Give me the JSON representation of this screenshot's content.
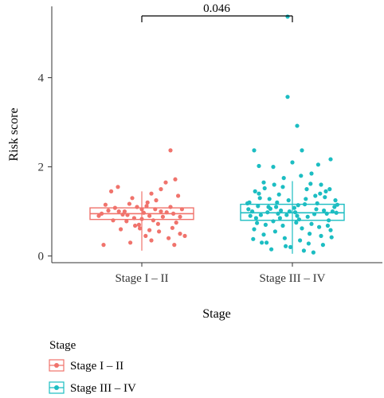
{
  "chart_data": {
    "type": "boxplot",
    "xlabel": "Stage",
    "ylabel": "Risk score",
    "ylim": [
      -0.15,
      5.6
    ],
    "yticks": [
      0,
      2,
      4
    ],
    "legend": {
      "title": "Stage",
      "placement": "bottom",
      "entries": [
        "Stage I – II",
        "Stage III – IV"
      ]
    },
    "significance": {
      "label": "0.046",
      "between": [
        "Stage I – II",
        "Stage III – IV"
      ]
    },
    "groups": [
      {
        "name": "Stage I – II",
        "color": "#F0736C",
        "box": {
          "q1": 0.82,
          "median": 0.95,
          "q3": 1.08,
          "whisker_low": 0.12,
          "whisker_high": 1.45
        },
        "points": [
          {
            "x": -0.42,
            "y": 0.95
          },
          {
            "x": -0.35,
            "y": 1.02
          },
          {
            "x": -0.3,
            "y": 0.8
          },
          {
            "x": -0.25,
            "y": 1.55
          },
          {
            "x": -0.22,
            "y": 0.6
          },
          {
            "x": -0.18,
            "y": 1.0
          },
          {
            "x": -0.15,
            "y": 0.92
          },
          {
            "x": -0.12,
            "y": 0.3
          },
          {
            "x": -0.1,
            "y": 1.3
          },
          {
            "x": -0.08,
            "y": 0.85
          },
          {
            "x": -0.05,
            "y": 1.1
          },
          {
            "x": -0.03,
            "y": 0.7
          },
          {
            "x": 0.0,
            "y": 1.05
          },
          {
            "x": 0.02,
            "y": 0.97
          },
          {
            "x": 0.04,
            "y": 0.45
          },
          {
            "x": 0.06,
            "y": 1.2
          },
          {
            "x": 0.08,
            "y": 0.9
          },
          {
            "x": 0.1,
            "y": 1.4
          },
          {
            "x": 0.12,
            "y": 0.8
          },
          {
            "x": 0.15,
            "y": 1.25
          },
          {
            "x": 0.18,
            "y": 0.55
          },
          {
            "x": 0.2,
            "y": 1.0
          },
          {
            "x": 0.22,
            "y": 0.88
          },
          {
            "x": 0.25,
            "y": 1.65
          },
          {
            "x": 0.28,
            "y": 0.4
          },
          {
            "x": 0.3,
            "y": 1.1
          },
          {
            "x": 0.33,
            "y": 0.95
          },
          {
            "x": 0.36,
            "y": 0.75
          },
          {
            "x": 0.38,
            "y": 1.35
          },
          {
            "x": 0.4,
            "y": 0.5
          },
          {
            "x": 0.42,
            "y": 1.05
          },
          {
            "x": 0.45,
            "y": 0.45
          },
          {
            "x": 0.3,
            "y": 2.37
          },
          {
            "x": -0.38,
            "y": 1.15
          },
          {
            "x": -0.28,
            "y": 1.08
          },
          {
            "x": -0.2,
            "y": 0.93
          },
          {
            "x": -0.13,
            "y": 1.17
          },
          {
            "x": 0.0,
            "y": 0.83
          },
          {
            "x": 0.14,
            "y": 1.05
          },
          {
            "x": 0.26,
            "y": 0.98
          },
          {
            "x": -0.4,
            "y": 0.25
          },
          {
            "x": 0.34,
            "y": 0.25
          },
          {
            "x": -0.02,
            "y": 0.62
          },
          {
            "x": 0.1,
            "y": 0.35
          },
          {
            "x": -0.32,
            "y": 1.45
          },
          {
            "x": 0.2,
            "y": 1.5
          },
          {
            "x": 0.35,
            "y": 1.72
          },
          {
            "x": -0.16,
            "y": 0.78
          },
          {
            "x": 0.05,
            "y": 1.12
          },
          {
            "x": 0.4,
            "y": 0.88
          },
          {
            "x": -0.07,
            "y": 0.68
          },
          {
            "x": 0.17,
            "y": 0.72
          },
          {
            "x": -0.24,
            "y": 1.0
          },
          {
            "x": 0.08,
            "y": 0.58
          },
          {
            "x": 0.32,
            "y": 0.63
          },
          {
            "x": -0.45,
            "y": 0.9
          }
        ]
      },
      {
        "name": "Stage III – IV",
        "color": "#1CBDC2",
        "box": {
          "q1": 0.8,
          "median": 0.97,
          "q3": 1.16,
          "whisker_low": 0.05,
          "whisker_high": 1.68
        },
        "points": [
          {
            "x": -0.05,
            "y": 5.37
          },
          {
            "x": -0.05,
            "y": 3.57
          },
          {
            "x": 0.05,
            "y": 2.92
          },
          {
            "x": -0.4,
            "y": 2.37
          },
          {
            "x": 0.1,
            "y": 2.37
          },
          {
            "x": 0.4,
            "y": 2.17
          },
          {
            "x": 0.0,
            "y": 2.1
          },
          {
            "x": -0.2,
            "y": 2.0
          },
          {
            "x": 0.2,
            "y": 1.85
          },
          {
            "x": -0.3,
            "y": 1.65
          },
          {
            "x": 0.3,
            "y": 1.6
          },
          {
            "x": -0.1,
            "y": 1.55
          },
          {
            "x": 0.15,
            "y": 1.5
          },
          {
            "x": 0.35,
            "y": 1.45
          },
          {
            "x": -0.35,
            "y": 1.4
          },
          {
            "x": -0.45,
            "y": 1.2
          },
          {
            "x": 0.45,
            "y": 1.25
          },
          {
            "x": -0.25,
            "y": 1.1
          },
          {
            "x": 0.25,
            "y": 1.05
          },
          {
            "x": -0.15,
            "y": 0.95
          },
          {
            "x": 0.05,
            "y": 0.9
          },
          {
            "x": -0.38,
            "y": 0.85
          },
          {
            "x": 0.38,
            "y": 0.8
          },
          {
            "x": -0.28,
            "y": 0.7
          },
          {
            "x": 0.28,
            "y": 0.65
          },
          {
            "x": -0.18,
            "y": 0.55
          },
          {
            "x": 0.18,
            "y": 0.5
          },
          {
            "x": -0.08,
            "y": 0.4
          },
          {
            "x": 0.08,
            "y": 0.35
          },
          {
            "x": -0.32,
            "y": 0.3
          },
          {
            "x": 0.32,
            "y": 0.25
          },
          {
            "x": -0.02,
            "y": 0.2
          },
          {
            "x": 0.12,
            "y": 0.12
          },
          {
            "x": -0.22,
            "y": 0.15
          },
          {
            "x": 0.22,
            "y": 0.08
          },
          {
            "x": -0.42,
            "y": 1.0
          },
          {
            "x": 0.42,
            "y": 1.0
          },
          {
            "x": -0.12,
            "y": 1.02
          },
          {
            "x": 0.02,
            "y": 1.08
          },
          {
            "x": -0.36,
            "y": 1.12
          },
          {
            "x": 0.36,
            "y": 0.95
          },
          {
            "x": -0.26,
            "y": 0.98
          },
          {
            "x": 0.26,
            "y": 1.18
          },
          {
            "x": -0.16,
            "y": 1.2
          },
          {
            "x": 0.16,
            "y": 0.88
          },
          {
            "x": -0.06,
            "y": 0.92
          },
          {
            "x": 0.06,
            "y": 1.14
          },
          {
            "x": -0.44,
            "y": 0.9
          },
          {
            "x": 0.44,
            "y": 1.1
          },
          {
            "x": -0.34,
            "y": 1.3
          },
          {
            "x": 0.34,
            "y": 1.32
          },
          {
            "x": -0.24,
            "y": 1.28
          },
          {
            "x": 0.24,
            "y": 1.35
          },
          {
            "x": -0.14,
            "y": 1.38
          },
          {
            "x": 0.14,
            "y": 1.28
          },
          {
            "x": -0.04,
            "y": 1.25
          },
          {
            "x": 0.04,
            "y": 0.75
          },
          {
            "x": -0.4,
            "y": 0.6
          },
          {
            "x": 0.4,
            "y": 0.58
          },
          {
            "x": -0.3,
            "y": 0.48
          },
          {
            "x": 0.3,
            "y": 0.45
          },
          {
            "x": -0.2,
            "y": 0.78
          },
          {
            "x": 0.2,
            "y": 0.72
          },
          {
            "x": -0.1,
            "y": 0.68
          },
          {
            "x": 0.1,
            "y": 0.62
          },
          {
            "x": -0.46,
            "y": 1.05
          },
          {
            "x": 0.46,
            "y": 0.97
          },
          {
            "x": -0.33,
            "y": 0.92
          },
          {
            "x": 0.33,
            "y": 1.02
          },
          {
            "x": -0.23,
            "y": 1.06
          },
          {
            "x": 0.23,
            "y": 0.94
          },
          {
            "x": -0.13,
            "y": 0.85
          },
          {
            "x": 0.13,
            "y": 1.16
          },
          {
            "x": -0.03,
            "y": 1.0
          },
          {
            "x": 0.03,
            "y": 0.98
          },
          {
            "x": -0.39,
            "y": 1.45
          },
          {
            "x": 0.39,
            "y": 1.5
          },
          {
            "x": -0.29,
            "y": 1.52
          },
          {
            "x": 0.29,
            "y": 1.4
          },
          {
            "x": -0.19,
            "y": 1.6
          },
          {
            "x": 0.19,
            "y": 1.62
          },
          {
            "x": -0.09,
            "y": 1.75
          },
          {
            "x": 0.09,
            "y": 1.8
          },
          {
            "x": -0.35,
            "y": 2.02
          },
          {
            "x": 0.27,
            "y": 2.05
          },
          {
            "x": -0.41,
            "y": 0.38
          },
          {
            "x": 0.41,
            "y": 0.42
          },
          {
            "x": -0.27,
            "y": 0.3
          },
          {
            "x": 0.17,
            "y": 0.28
          },
          {
            "x": -0.07,
            "y": 0.22
          },
          {
            "x": 0.37,
            "y": 0.68
          },
          {
            "x": -0.37,
            "y": 0.74
          },
          {
            "x": 0.07,
            "y": 0.82
          },
          {
            "x": -0.17,
            "y": 1.1
          },
          {
            "x": 0.47,
            "y": 1.15
          },
          {
            "x": -0.47,
            "y": 1.18
          }
        ]
      }
    ]
  }
}
